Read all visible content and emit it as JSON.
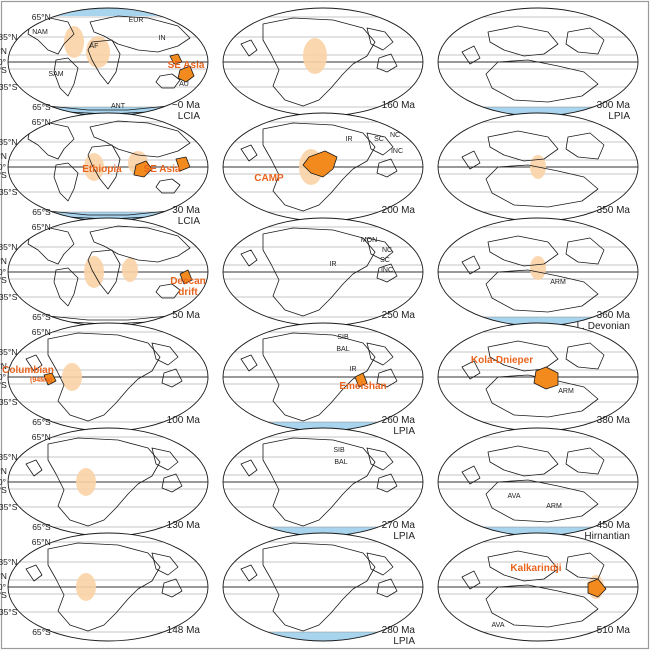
{
  "lat_ticks": [
    "65°N",
    "35°N",
    "10°N",
    "0°",
    "10°S",
    "35°S",
    "65°S"
  ],
  "panels": [
    {
      "age": "~0 Ma",
      "sub": "LCIA",
      "lips": [
        "SE Asia"
      ],
      "regions": [
        "NAM",
        "EUR",
        "AF",
        "IN",
        "SAM",
        "AU",
        "ANT"
      ]
    },
    {
      "age": "30 Ma",
      "sub": "LCIA",
      "lips": [
        "Ethiopia",
        "SE Asia"
      ],
      "regions": []
    },
    {
      "age": "50 Ma",
      "sub": "",
      "lips": [
        "Deccan",
        "drift"
      ],
      "regions": []
    },
    {
      "age": "100 Ma",
      "sub": "",
      "lips": [
        "Columbian",
        "(94Ma)"
      ],
      "regions": []
    },
    {
      "age": "130 Ma",
      "sub": "",
      "lips": [],
      "regions": []
    },
    {
      "age": "148 Ma",
      "sub": "",
      "lips": [],
      "regions": []
    },
    {
      "age": "160 Ma",
      "sub": "",
      "lips": [],
      "regions": []
    },
    {
      "age": "200 Ma",
      "sub": "",
      "lips": [
        "CAMP"
      ],
      "regions": [
        "IR",
        "SC",
        "NC",
        "INC"
      ]
    },
    {
      "age": "250 Ma",
      "sub": "",
      "lips": [],
      "regions": [
        "MON",
        "NC",
        "IR",
        "SC",
        "INC"
      ]
    },
    {
      "age": "260 Ma",
      "sub": "LPIA",
      "lips": [
        "Emeishan"
      ],
      "regions": [
        "SIB",
        "BAL",
        "IR"
      ]
    },
    {
      "age": "270 Ma",
      "sub": "LPIA",
      "lips": [],
      "regions": [
        "SIB",
        "BAL"
      ]
    },
    {
      "age": "280 Ma",
      "sub": "LPIA",
      "lips": [],
      "regions": []
    },
    {
      "age": "300 Ma",
      "sub": "LPIA",
      "lips": [],
      "regions": []
    },
    {
      "age": "350 Ma",
      "sub": "",
      "lips": [],
      "regions": []
    },
    {
      "age": "360 Ma",
      "sub": "L. Devonian",
      "lips": [],
      "regions": [
        "ARM"
      ]
    },
    {
      "age": "380 Ma",
      "sub": "",
      "lips": [
        "Kola-Dnieper"
      ],
      "regions": [
        "ARM"
      ]
    },
    {
      "age": "450 Ma",
      "sub": "Hirnantian",
      "lips": [],
      "regions": [
        "AVA",
        "ARM"
      ]
    },
    {
      "age": "510 Ma",
      "sub": "",
      "lips": [
        "Kalkarindji"
      ],
      "regions": [
        "AVA"
      ]
    }
  ],
  "colors": {
    "ice": "#a8d4ee",
    "lip_fill": "#f28a1e",
    "lip_dark": "#e06010",
    "lip_label": "#e8641e",
    "tropics_pale": "#fbd3a6",
    "outline": "#1a1a1a",
    "grid": "#8a8a8a",
    "frame": "#9a9a9a"
  }
}
